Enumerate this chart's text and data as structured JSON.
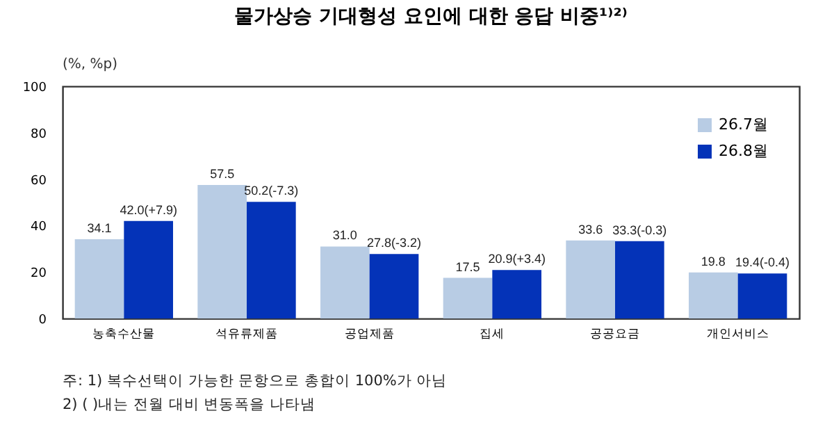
{
  "chart_data": {
    "type": "bar",
    "title": "물가상승 기대형성 요인에 대한 응답 비중¹⁾²⁾",
    "ylabel": "(%, %p)",
    "categories": [
      "농축수산물",
      "석유류제품",
      "공업제품",
      "집세",
      "공공요금",
      "개인서비스"
    ],
    "series": [
      {
        "name": "26.7월",
        "color": "#b8cce4",
        "values": [
          34.1,
          57.5,
          31.0,
          17.5,
          33.6,
          19.8
        ],
        "value_labels": [
          "34.1",
          "57.5",
          "31.0",
          "17.5",
          "33.6",
          "19.8"
        ]
      },
      {
        "name": "26.8월",
        "color": "#0433b8",
        "values": [
          42.0,
          50.2,
          27.8,
          20.9,
          33.3,
          19.4
        ],
        "value_labels": [
          "42.0(+7.9)",
          "50.2(-7.3)",
          "27.8(-3.2)",
          "20.9(+3.4)",
          "33.3(-0.3)",
          "19.4(-0.4)"
        ]
      }
    ],
    "ylim": [
      0,
      100
    ],
    "yticks": [
      0,
      20,
      40,
      60,
      80,
      100
    ],
    "grid": false,
    "legend": "top right",
    "annotations": [
      "주: 1) 복수선택이 가능한 문항으로 총합이 100%가 아님",
      "2) ( )내는 전월 대비 변동폭을 나타냄"
    ]
  }
}
